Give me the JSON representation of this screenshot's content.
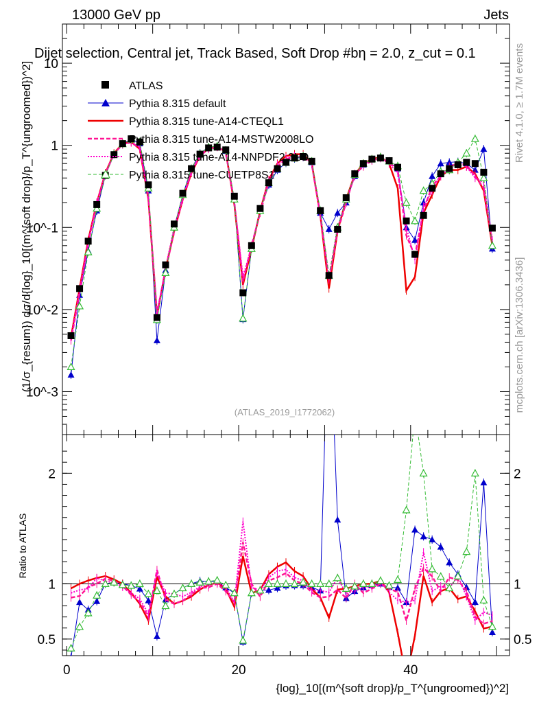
{
  "header": {
    "left": "13000 GeV pp",
    "right": "Jets"
  },
  "side_texts": {
    "rivet": "Rivet 4.1.0, ≥ 1.7M events",
    "mcplots": "mcplots.cern.ch [arXiv:1306.3436]"
  },
  "chart_data": {
    "type": "scatter",
    "title": "Dijet selection, Central jet, Track Based, Soft Drop #bη = 2.0, z_cut = 0.1",
    "analysis_label": "(ATLAS_2019_I1772062)",
    "xlabel": "{log}_10[(m^{soft drop}/p_T^{ungroomed})^2]",
    "ylabel_main": "(1/σ_{resum}) dσ/d{log}_10[(m^{soft drop}/p_T^{ungroomed})^2]",
    "ylabel_ratio": "Ratio to ATLAS",
    "xlim": [
      -0.5,
      51.5
    ],
    "ylim_main": [
      0.0003,
      30
    ],
    "ylim_ratio": [
      0.35,
      2.35
    ],
    "x_ticks": [
      0,
      20,
      40
    ],
    "y_ticks_main": [
      "10^-3",
      "10^-2",
      "10^-1",
      "1",
      "10"
    ],
    "y_ticks_ratio": [
      "0.5",
      "1",
      "2"
    ],
    "legend": [
      "ATLAS",
      "Pythia 8.315 default",
      "Pythia 8.315 tune-A14-CTEQL1",
      "Pythia 8.315 tune-A14-MSTW2008LO",
      "Pythia 8.315 tune-A14-NNPDF2.3LO",
      "Pythia 8.315 tune-CUETP8S1"
    ],
    "x": [
      0.5,
      1.5,
      2.5,
      3.5,
      4.5,
      5.5,
      6.5,
      7.5,
      8.5,
      9.5,
      10.5,
      11.5,
      12.5,
      13.5,
      14.5,
      15.5,
      16.5,
      17.5,
      18.5,
      19.5,
      20.5,
      21.5,
      22.5,
      23.5,
      24.5,
      25.5,
      26.5,
      27.5,
      28.5,
      29.5,
      30.5,
      31.5,
      32.5,
      33.5,
      34.5,
      35.5,
      36.5,
      37.5,
      38.5,
      39.5,
      40.5,
      41.5,
      42.5,
      43.5,
      44.5,
      45.5,
      46.5,
      47.5,
      48.5,
      49.5
    ],
    "series": [
      {
        "name": "ATLAS",
        "color": "#000000",
        "values": [
          0.0048,
          0.018,
          0.068,
          0.19,
          0.43,
          0.77,
          1.05,
          1.2,
          1.1,
          0.33,
          0.008,
          0.035,
          0.11,
          0.26,
          0.52,
          0.78,
          0.93,
          0.95,
          0.88,
          0.24,
          0.016,
          0.06,
          0.17,
          0.35,
          0.52,
          0.62,
          0.7,
          0.73,
          0.64,
          0.16,
          0.026,
          0.095,
          0.23,
          0.45,
          0.6,
          0.68,
          0.7,
          0.65,
          0.54,
          0.12,
          0.047,
          0.14,
          0.3,
          0.45,
          0.52,
          0.58,
          0.62,
          0.6,
          0.47,
          0.098
        ]
      },
      {
        "name": "Pythia 8.315 default",
        "color": "#0000cc",
        "values": [
          0.0016,
          0.015,
          0.052,
          0.16,
          0.43,
          0.78,
          1.05,
          1.18,
          1.05,
          0.28,
          0.0042,
          0.03,
          0.1,
          0.25,
          0.52,
          0.8,
          0.95,
          0.97,
          0.85,
          0.22,
          0.0076,
          0.055,
          0.16,
          0.33,
          0.5,
          0.61,
          0.69,
          0.72,
          0.62,
          0.15,
          0.095,
          0.15,
          0.2,
          0.42,
          0.58,
          0.67,
          0.7,
          0.63,
          0.52,
          0.1,
          0.07,
          0.2,
          0.42,
          0.6,
          0.62,
          0.63,
          0.6,
          0.5,
          0.9,
          0.055
        ]
      },
      {
        "name": "Pythia 8.315 tune-A14-CTEQL1",
        "color": "#ee0000",
        "values": [
          0.0046,
          0.018,
          0.07,
          0.2,
          0.46,
          0.8,
          1.05,
          1.1,
          0.9,
          0.22,
          0.0085,
          0.031,
          0.09,
          0.22,
          0.46,
          0.74,
          0.92,
          0.96,
          0.84,
          0.19,
          0.02,
          0.055,
          0.16,
          0.38,
          0.6,
          0.74,
          0.78,
          0.78,
          0.61,
          0.14,
          0.018,
          0.09,
          0.22,
          0.44,
          0.6,
          0.68,
          0.72,
          0.6,
          0.3,
          0.017,
          0.025,
          0.15,
          0.25,
          0.42,
          0.5,
          0.5,
          0.55,
          0.45,
          0.28,
          0.06
        ]
      },
      {
        "name": "Pythia 8.315 tune-A14-MSTW2008LO",
        "color": "#ff1493",
        "values": [
          0.0042,
          0.016,
          0.066,
          0.19,
          0.45,
          0.79,
          1.03,
          1.08,
          0.92,
          0.23,
          0.009,
          0.03,
          0.09,
          0.22,
          0.47,
          0.75,
          0.9,
          0.95,
          0.82,
          0.2,
          0.022,
          0.06,
          0.15,
          0.36,
          0.55,
          0.68,
          0.72,
          0.73,
          0.59,
          0.14,
          0.023,
          0.09,
          0.2,
          0.45,
          0.55,
          0.65,
          0.7,
          0.62,
          0.5,
          0.08,
          0.045,
          0.16,
          0.32,
          0.42,
          0.55,
          0.6,
          0.58,
          0.42,
          0.3,
          0.065
        ]
      },
      {
        "name": "Pythia 8.315 tune-A14-NNPDF2.3LO",
        "color": "#ff00cc",
        "values": [
          0.0044,
          0.017,
          0.065,
          0.2,
          0.44,
          0.78,
          1.02,
          1.1,
          0.95,
          0.24,
          0.0088,
          0.032,
          0.1,
          0.23,
          0.48,
          0.76,
          0.92,
          0.96,
          0.85,
          0.2,
          0.025,
          0.058,
          0.16,
          0.37,
          0.58,
          0.7,
          0.74,
          0.75,
          0.6,
          0.15,
          0.024,
          0.1,
          0.21,
          0.42,
          0.58,
          0.66,
          0.71,
          0.6,
          0.46,
          0.1,
          0.04,
          0.18,
          0.28,
          0.44,
          0.5,
          0.62,
          0.55,
          0.4,
          0.35,
          0.07
        ]
      },
      {
        "name": "Pythia 8.315 tune-CUETP8S1",
        "color": "#33bb33",
        "values": [
          0.002,
          0.011,
          0.05,
          0.17,
          0.43,
          0.78,
          1.04,
          1.18,
          1.1,
          0.3,
          0.0075,
          0.028,
          0.1,
          0.25,
          0.52,
          0.79,
          0.95,
          0.98,
          0.87,
          0.22,
          0.0078,
          0.055,
          0.16,
          0.35,
          0.52,
          0.62,
          0.7,
          0.74,
          0.64,
          0.16,
          0.026,
          0.1,
          0.22,
          0.44,
          0.6,
          0.68,
          0.72,
          0.64,
          0.56,
          0.2,
          0.12,
          0.28,
          0.34,
          0.48,
          0.5,
          0.62,
          0.8,
          1.2,
          0.4,
          0.06
        ]
      }
    ]
  }
}
